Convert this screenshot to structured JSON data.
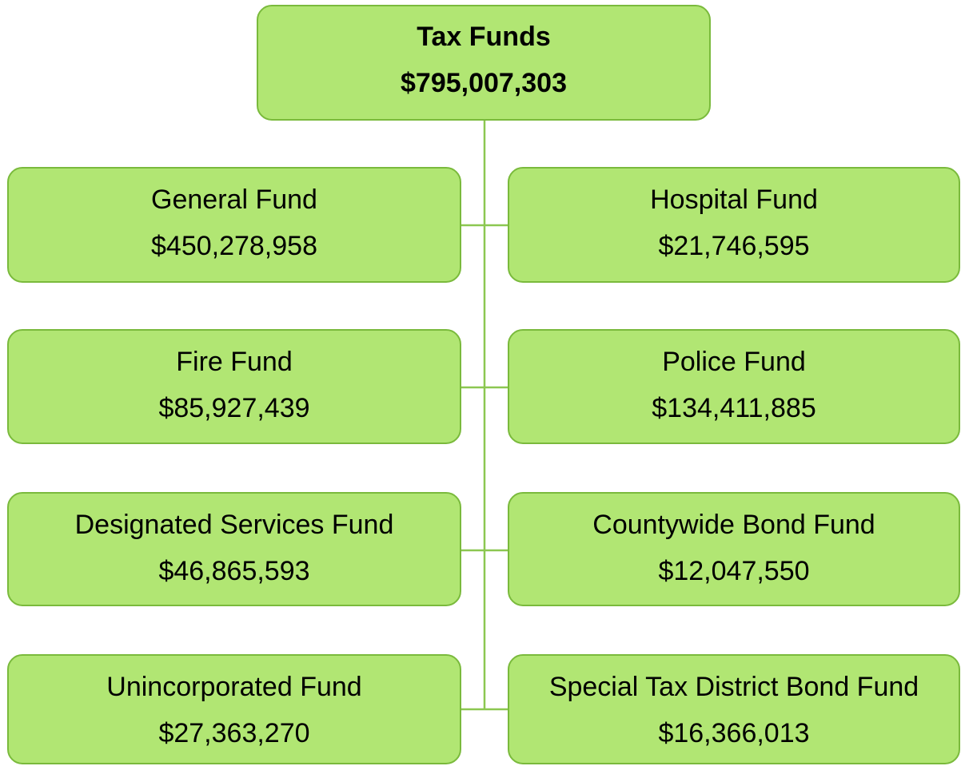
{
  "root": {
    "label": "Tax Funds",
    "amount": "$795,007,303"
  },
  "nodes": [
    {
      "label": "General Fund",
      "amount": "$450,278,958"
    },
    {
      "label": "Hospital Fund",
      "amount": "$21,746,595"
    },
    {
      "label": "Fire Fund",
      "amount": "$85,927,439"
    },
    {
      "label": "Police Fund",
      "amount": "$134,411,885"
    },
    {
      "label": "Designated Services Fund",
      "amount": "$46,865,593"
    },
    {
      "label": "Countywide Bond Fund",
      "amount": "$12,047,550"
    },
    {
      "label": "Unincorporated Fund",
      "amount": "$27,363,270"
    },
    {
      "label": "Special Tax District Bond Fund",
      "amount": "$16,366,013"
    }
  ]
}
